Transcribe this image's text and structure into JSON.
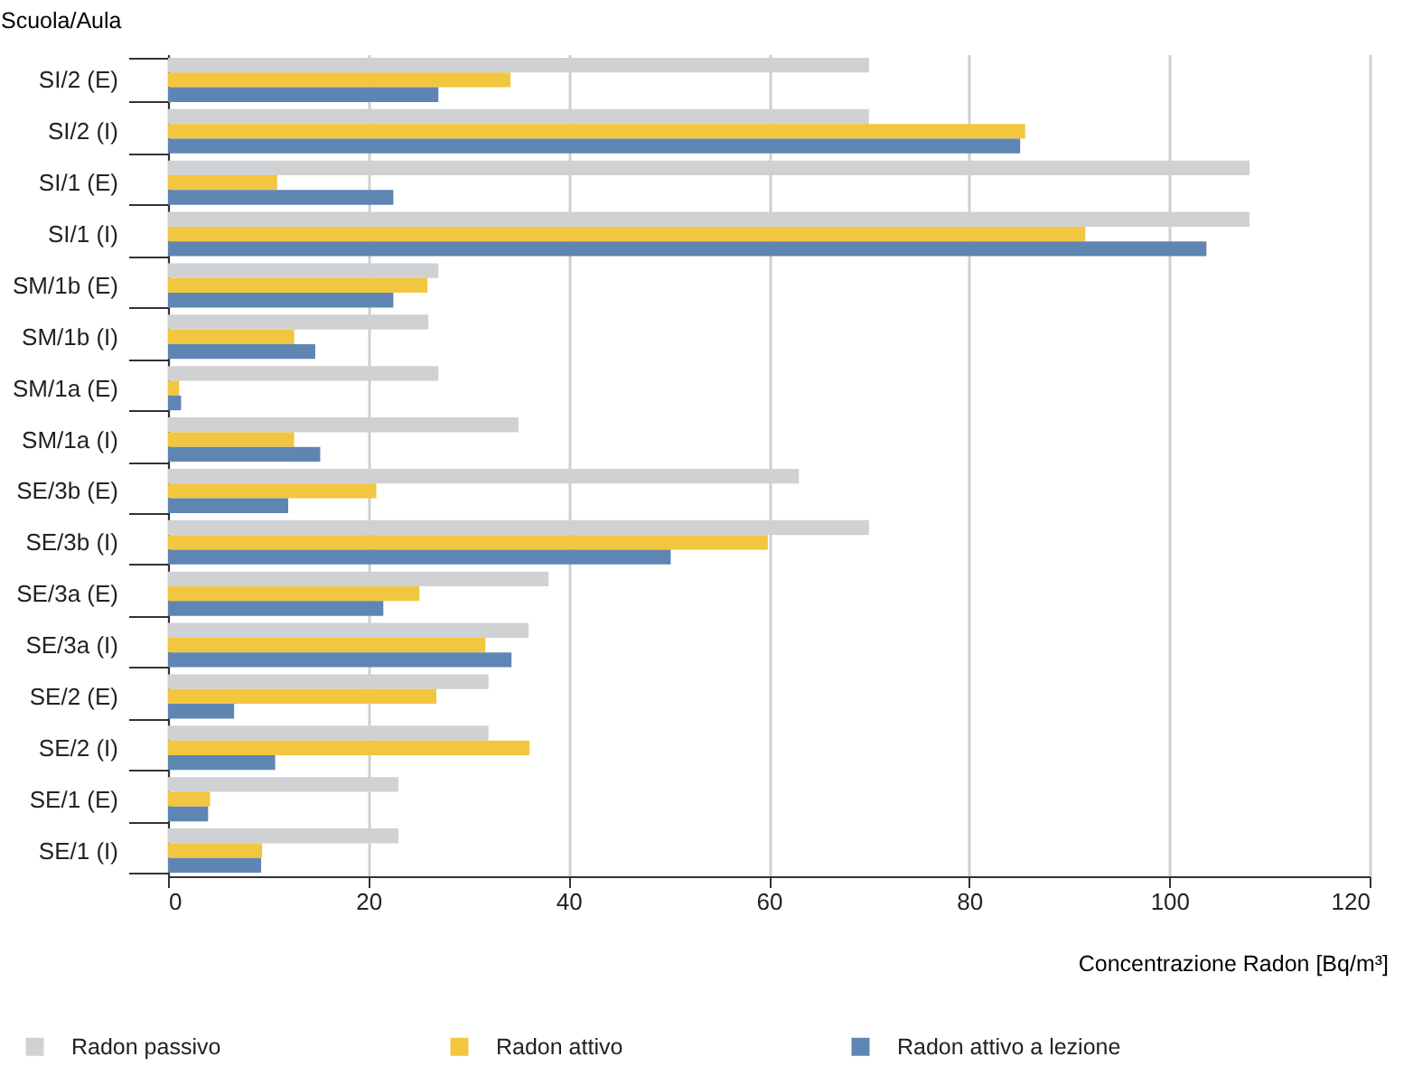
{
  "chart_data": {
    "type": "bar",
    "orientation": "horizontal",
    "xlabel": "Concentrazione Radon [Bq/m³]",
    "ylabel": "Scuola/Aula",
    "categories": [
      "SI/2 (E)",
      "SI/2 (I)",
      "SI/1 (E)",
      "SI/1 (I)",
      "SM/1b (E)",
      "SM/1b (I)",
      "SM/1a (E)",
      "SM/1a (I)",
      "SE/3b (E)",
      "SE/3b (I)",
      "SE/3a (E)",
      "SE/3a (I)",
      "SE/2 (E)",
      "SE/2 (I)",
      "SE/1 (E)",
      "SE/1 (I)"
    ],
    "series": [
      {
        "name": "Radon passivo",
        "color": "#d0d1d3",
        "values": [
          70,
          70,
          108,
          108,
          27,
          26,
          27,
          35,
          63,
          70,
          38,
          36,
          32,
          32,
          23,
          23
        ]
      },
      {
        "name": "Radon attivo",
        "color": "#f2c63f",
        "values": [
          34.2,
          85.6,
          10.9,
          91.6,
          25.9,
          12.6,
          1.1,
          12.6,
          20.8,
          59.9,
          25.1,
          31.7,
          26.8,
          36.1,
          4.2,
          9.4
        ]
      },
      {
        "name": "Radon attivo a lezione",
        "color": "#5f86b2",
        "values": [
          27,
          85.1,
          22.5,
          103.7,
          22.5,
          14.7,
          1.3,
          15.2,
          12,
          50.2,
          21.5,
          34.3,
          6.6,
          10.7,
          4,
          9.3
        ]
      }
    ],
    "xlim": [
      0,
      120
    ],
    "xticks": [
      0,
      20,
      40,
      60,
      80,
      100,
      120
    ],
    "grid": "x",
    "legend": "bottom"
  }
}
